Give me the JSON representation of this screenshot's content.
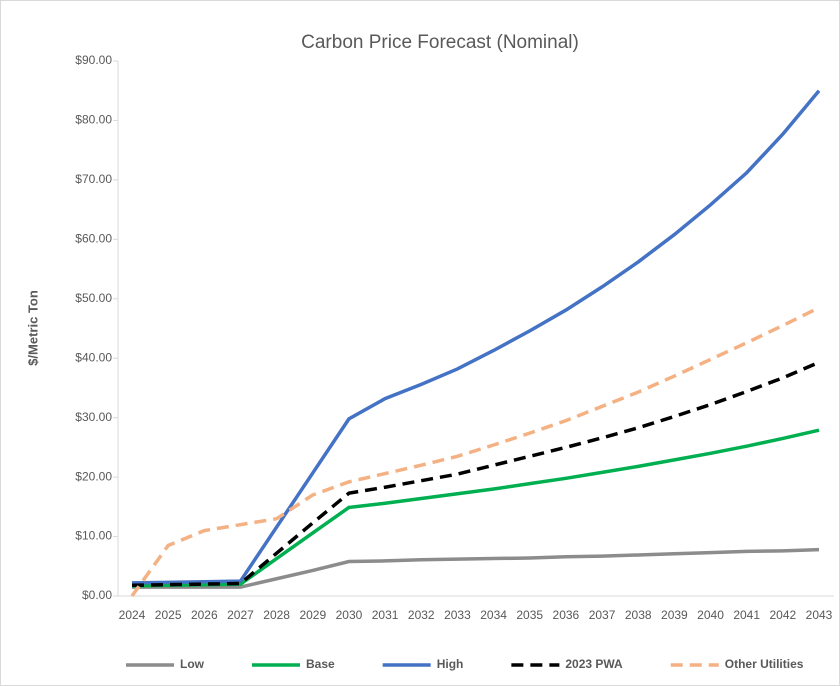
{
  "chart_data": {
    "type": "line",
    "title": "Carbon Price Forecast (Nominal)",
    "y_label": "$/Metric Ton",
    "x": [
      2024,
      2025,
      2026,
      2027,
      2028,
      2029,
      2030,
      2031,
      2032,
      2033,
      2034,
      2035,
      2036,
      2037,
      2038,
      2039,
      2040,
      2041,
      2042,
      2043
    ],
    "ylim": [
      0,
      90
    ],
    "yticks": [
      {
        "value": 0,
        "label": "$0.00"
      },
      {
        "value": 10,
        "label": "$10.00"
      },
      {
        "value": 20,
        "label": "$20.00"
      },
      {
        "value": 30,
        "label": "$30.00"
      },
      {
        "value": 40,
        "label": "$40.00"
      },
      {
        "value": 50,
        "label": "$50.00"
      },
      {
        "value": 60,
        "label": "$60.00"
      },
      {
        "value": 70,
        "label": "$70.00"
      },
      {
        "value": 80,
        "label": "$80.00"
      },
      {
        "value": 90,
        "label": "$90.00"
      }
    ],
    "grid": false,
    "legend": "bottom",
    "series": [
      {
        "name": "Low",
        "color": "#8c8c8c",
        "dashed": false,
        "values": [
          1.5,
          1.5,
          1.5,
          1.5,
          2.9,
          4.3,
          5.8,
          5.9,
          6.1,
          6.2,
          6.3,
          6.4,
          6.6,
          6.7,
          6.9,
          7.1,
          7.3,
          7.5,
          7.6,
          7.8
        ]
      },
      {
        "name": "Base",
        "color": "#00b050",
        "dashed": false,
        "values": [
          1.7,
          1.8,
          1.9,
          2.0,
          6.3,
          10.6,
          14.9,
          15.6,
          16.4,
          17.2,
          18.0,
          18.9,
          19.8,
          20.8,
          21.8,
          22.9,
          24.0,
          25.2,
          26.5,
          27.9
        ]
      },
      {
        "name": "High",
        "color": "#4472c4",
        "dashed": false,
        "values": [
          2.2,
          2.3,
          2.4,
          2.5,
          11.6,
          20.7,
          29.8,
          33.2,
          35.6,
          38.2,
          41.3,
          44.6,
          48.1,
          52.0,
          56.2,
          60.8,
          65.8,
          71.2,
          77.7,
          85.0
        ]
      },
      {
        "name": "2023 PWA",
        "color": "#000000",
        "dashed": true,
        "values": [
          1.8,
          1.9,
          2.0,
          2.1,
          7.2,
          12.3,
          17.3,
          18.3,
          19.4,
          20.5,
          22.0,
          23.5,
          25.0,
          26.6,
          28.3,
          30.2,
          32.2,
          34.4,
          36.7,
          39.3
        ]
      },
      {
        "name": "Other Utilities",
        "color": "#f4b183",
        "dashed": true,
        "values": [
          0,
          8.5,
          11.0,
          12.0,
          13.0,
          17.0,
          19.2,
          20.6,
          22.0,
          23.5,
          25.4,
          27.4,
          29.5,
          31.9,
          34.3,
          37.0,
          39.8,
          42.6,
          45.5,
          48.5
        ]
      }
    ]
  }
}
